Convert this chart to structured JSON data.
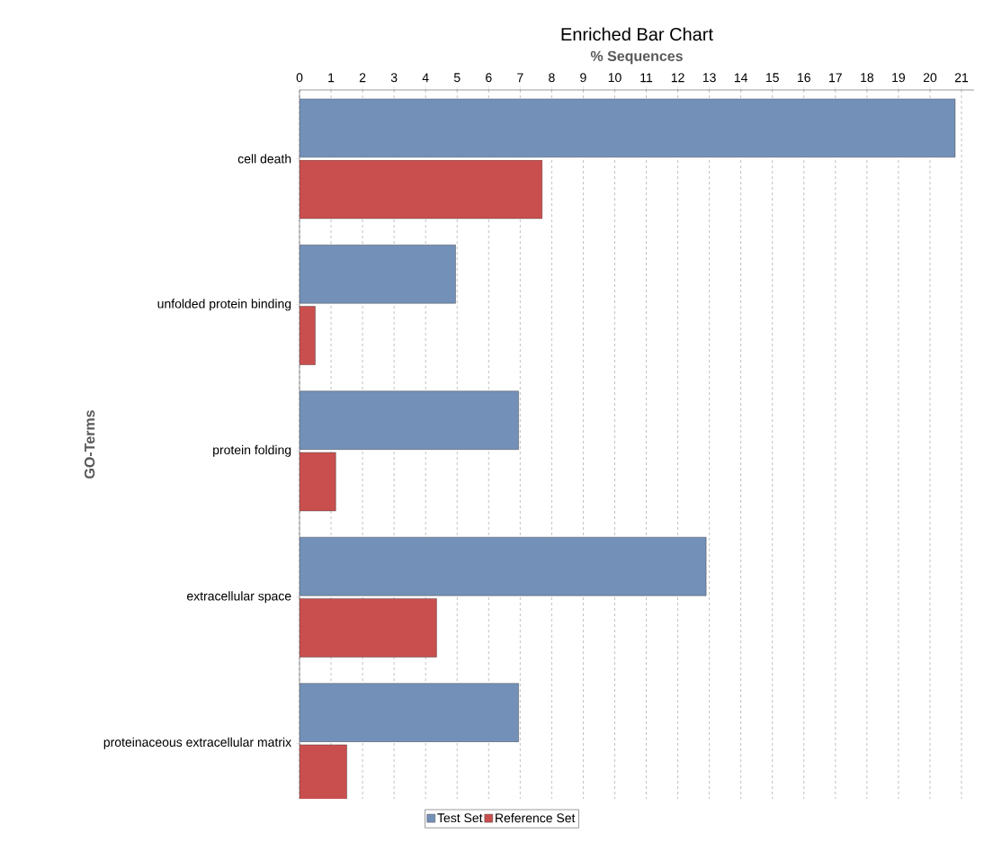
{
  "chart_data": {
    "type": "bar",
    "orientation": "horizontal",
    "title": "Enriched Bar Chart",
    "xlabel": "% Sequences",
    "ylabel": "GO-Terms",
    "categories": [
      "cell death",
      "unfolded protein binding",
      "protein folding",
      "extracellular space",
      "proteinaceous extracellular matrix"
    ],
    "series": [
      {
        "name": "Test Set",
        "color": "#7390b8",
        "values": [
          20.8,
          4.95,
          6.95,
          12.9,
          6.95
        ]
      },
      {
        "name": "Reference Set",
        "color": "#c94f4f",
        "values": [
          7.7,
          0.5,
          1.15,
          4.35,
          1.5
        ]
      }
    ],
    "xlim": [
      0,
      21.4
    ],
    "xticks": [
      0,
      1,
      2,
      3,
      4,
      5,
      6,
      7,
      8,
      9,
      10,
      11,
      12,
      13,
      14,
      15,
      16,
      17,
      18,
      19,
      20,
      21
    ],
    "grid": "x",
    "legend": "bottom"
  }
}
